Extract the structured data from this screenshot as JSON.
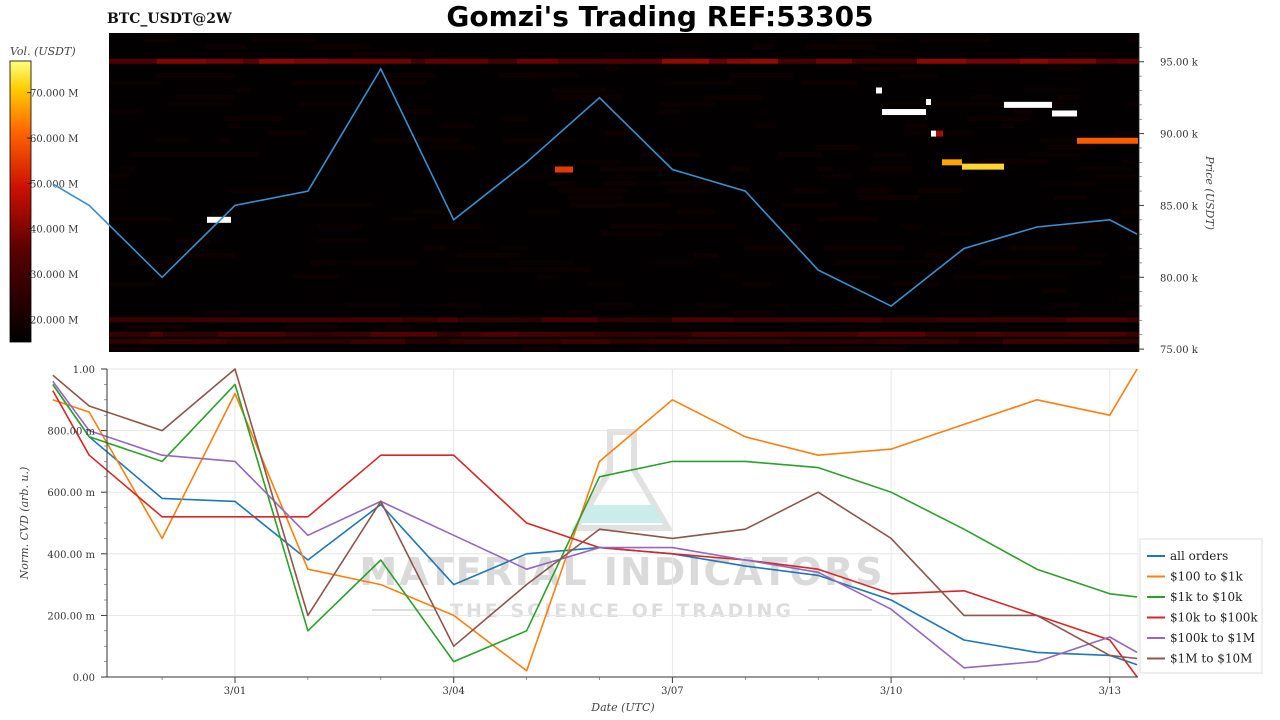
{
  "header": {
    "pair": "BTC_USDT@2W",
    "title": "Gomzi's Trading REF:53305"
  },
  "watermark": {
    "line1": "MATERIAL INDICATORS",
    "line2": "THE SCIENCE OF TRADING"
  },
  "colors": {
    "all_orders": "#1f77b4",
    "s100_1k": "#ff7f0e",
    "s1k_10k": "#2ca02c",
    "s10k_100k": "#d62728",
    "s100k_1m": "#9467bd",
    "s1m_10m": "#8c564b",
    "price_line": "#3a8fd0",
    "heatmap_bg": "#020000"
  },
  "chart_data": [
    {
      "type": "heatmap",
      "x": [
        "2025-02-26 12:00",
        "2025-02-27",
        "2025-02-28",
        "2025-03-01",
        "2025-03-02",
        "2025-03-03",
        "2025-03-04",
        "2025-03-05",
        "2025-03-06",
        "2025-03-07",
        "2025-03-08",
        "2025-03-09",
        "2025-03-10",
        "2025-03-11",
        "2025-03-12",
        "2025-03-13",
        "2025-03-13 09:00"
      ],
      "price_line": [
        86500,
        85000,
        80000,
        85000,
        86000,
        94500,
        84000,
        88000,
        92500,
        87500,
        86000,
        80500,
        78000,
        82000,
        83500,
        84000,
        83000
      ],
      "colorbar": {
        "label": "Vol. (USDT)",
        "ticks": [
          "20.000 M",
          "30.000 M",
          "40.000 M",
          "50.000 M",
          "60.000 M",
          "70.000 M"
        ],
        "range": [
          15000000,
          77000000
        ]
      },
      "xticks": [
        "3/01",
        "3/04",
        "3/07",
        "3/10",
        "3/13"
      ],
      "yticks": [
        "75.00 k",
        "80.00 k",
        "85.00 k",
        "90.00 k",
        "95.00 k"
      ],
      "ylim": [
        74800,
        97000
      ],
      "ylabel": "Price (USDT)",
      "bands": [
        {
          "price": 95000,
          "vol": 42000000
        },
        {
          "price": 76000,
          "vol": 35000000
        },
        {
          "price": 75500,
          "vol": 30000000
        },
        {
          "price": 77000,
          "vol": 32000000
        }
      ],
      "walls": [
        {
          "price": 84000,
          "vol": 77000000
        },
        {
          "price": 87500,
          "vol": 55000000
        },
        {
          "price": 88000,
          "vol": 67000000
        },
        {
          "price": 87700,
          "vol": 72000000
        },
        {
          "price": 91500,
          "vol": 77000000
        },
        {
          "price": 93000,
          "vol": 77000000
        },
        {
          "price": 92200,
          "vol": 77000000
        },
        {
          "price": 90000,
          "vol": 77000000
        },
        {
          "price": 92000,
          "vol": 77000000
        },
        {
          "price": 91400,
          "vol": 77000000
        },
        {
          "price": 89500,
          "vol": 60000000
        },
        {
          "price": 90000,
          "vol": 45000000
        }
      ]
    },
    {
      "type": "line",
      "x": [
        "2025-02-26 12:00",
        "2025-02-27",
        "2025-02-28",
        "2025-03-01",
        "2025-03-02",
        "2025-03-03",
        "2025-03-04",
        "2025-03-05",
        "2025-03-06",
        "2025-03-07",
        "2025-03-08",
        "2025-03-09",
        "2025-03-10",
        "2025-03-11",
        "2025-03-12",
        "2025-03-13",
        "2025-03-13 09:00"
      ],
      "xticks": [
        "3/01",
        "3/04",
        "3/07",
        "3/10",
        "3/13"
      ],
      "yticks": [
        "0.00",
        "200.00 m",
        "400.00 m",
        "600.00 m",
        "800.00 m",
        "1.00"
      ],
      "ylim": [
        0,
        1
      ],
      "xlabel": "Date (UTC)",
      "ylabel": "Norm. CVD (arb. u.)",
      "legend_position": "lower-right",
      "series": [
        {
          "name": "all orders",
          "key": "all_orders",
          "values": [
            0.95,
            0.78,
            0.58,
            0.57,
            0.38,
            0.56,
            0.3,
            0.4,
            0.42,
            0.4,
            0.36,
            0.33,
            0.25,
            0.12,
            0.08,
            0.07,
            0.04
          ]
        },
        {
          "name": "$100 to $1k",
          "key": "s100_1k",
          "values": [
            0.9,
            0.86,
            0.45,
            0.92,
            0.35,
            0.3,
            0.2,
            0.02,
            0.7,
            0.9,
            0.78,
            0.72,
            0.74,
            0.82,
            0.9,
            0.85,
            1.0
          ]
        },
        {
          "name": "$1k to $10k",
          "key": "s1k_10k",
          "values": [
            0.95,
            0.78,
            0.7,
            0.95,
            0.15,
            0.38,
            0.05,
            0.15,
            0.65,
            0.7,
            0.7,
            0.68,
            0.6,
            0.48,
            0.35,
            0.27,
            0.26
          ]
        },
        {
          "name": "$10k to $100k",
          "key": "s10k_100k",
          "values": [
            0.93,
            0.72,
            0.52,
            0.52,
            0.52,
            0.72,
            0.72,
            0.5,
            0.42,
            0.4,
            0.38,
            0.35,
            0.27,
            0.28,
            0.2,
            0.12,
            0.0
          ]
        },
        {
          "name": "$100k to $1M",
          "key": "s100k_1m",
          "values": [
            0.96,
            0.8,
            0.72,
            0.7,
            0.46,
            0.57,
            0.46,
            0.35,
            0.42,
            0.42,
            0.38,
            0.34,
            0.22,
            0.03,
            0.05,
            0.13,
            0.08
          ]
        },
        {
          "name": "$1M to $10M",
          "key": "s1m_10m",
          "values": [
            0.98,
            0.88,
            0.8,
            1.0,
            0.2,
            0.57,
            0.1,
            0.3,
            0.48,
            0.45,
            0.48,
            0.6,
            0.45,
            0.2,
            0.2,
            0.07,
            0.06
          ]
        }
      ]
    }
  ]
}
